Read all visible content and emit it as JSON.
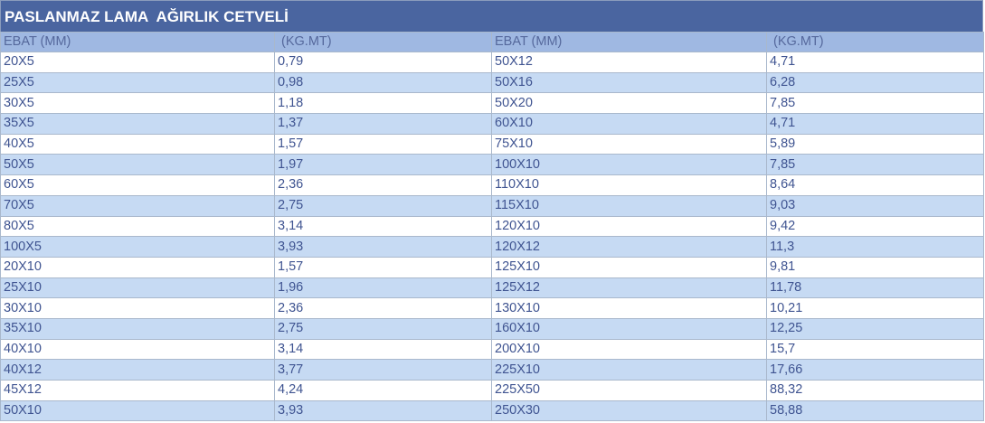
{
  "title": "PASLANMAZ LAMA  AĞIRLIK CETVELİ",
  "headers": [
    "EBAT (MM)",
    " (KG.MT)",
    "EBAT (MM)",
    " (KG.MT)"
  ],
  "colors": {
    "title_bg": "#4a65a0",
    "header_bg": "#9fb8e2",
    "alt_row_bg": "#c6daf3",
    "text": "#3f5491"
  },
  "rows": [
    [
      "20X5",
      "0,79",
      "50X12",
      "4,71"
    ],
    [
      "25X5",
      "0,98",
      "50X16",
      "6,28"
    ],
    [
      "30X5",
      "1,18",
      "50X20",
      "7,85"
    ],
    [
      "35X5",
      "1,37",
      "60X10",
      "4,71"
    ],
    [
      "40X5",
      "1,57",
      "75X10",
      "5,89"
    ],
    [
      "50X5",
      "1,97",
      "100X10",
      "7,85"
    ],
    [
      "60X5",
      "2,36",
      "110X10",
      "8,64"
    ],
    [
      "70X5",
      "2,75",
      "115X10",
      "9,03"
    ],
    [
      "80X5",
      "3,14",
      "120X10",
      "9,42"
    ],
    [
      "100X5",
      "3,93",
      "120X12",
      "11,3"
    ],
    [
      "20X10",
      "1,57",
      "125X10",
      "9,81"
    ],
    [
      "25X10",
      "1,96",
      "125X12",
      "11,78"
    ],
    [
      "30X10",
      "2,36",
      "130X10",
      "10,21"
    ],
    [
      "35X10",
      "2,75",
      "160X10",
      "12,25"
    ],
    [
      "40X10",
      "3,14",
      "200X10",
      "15,7"
    ],
    [
      "40X12",
      "3,77",
      "225X10",
      "17,66"
    ],
    [
      "45X12",
      "4,24",
      "225X50",
      "88,32"
    ],
    [
      "50X10",
      "3,93",
      "250X30",
      "58,88"
    ]
  ]
}
